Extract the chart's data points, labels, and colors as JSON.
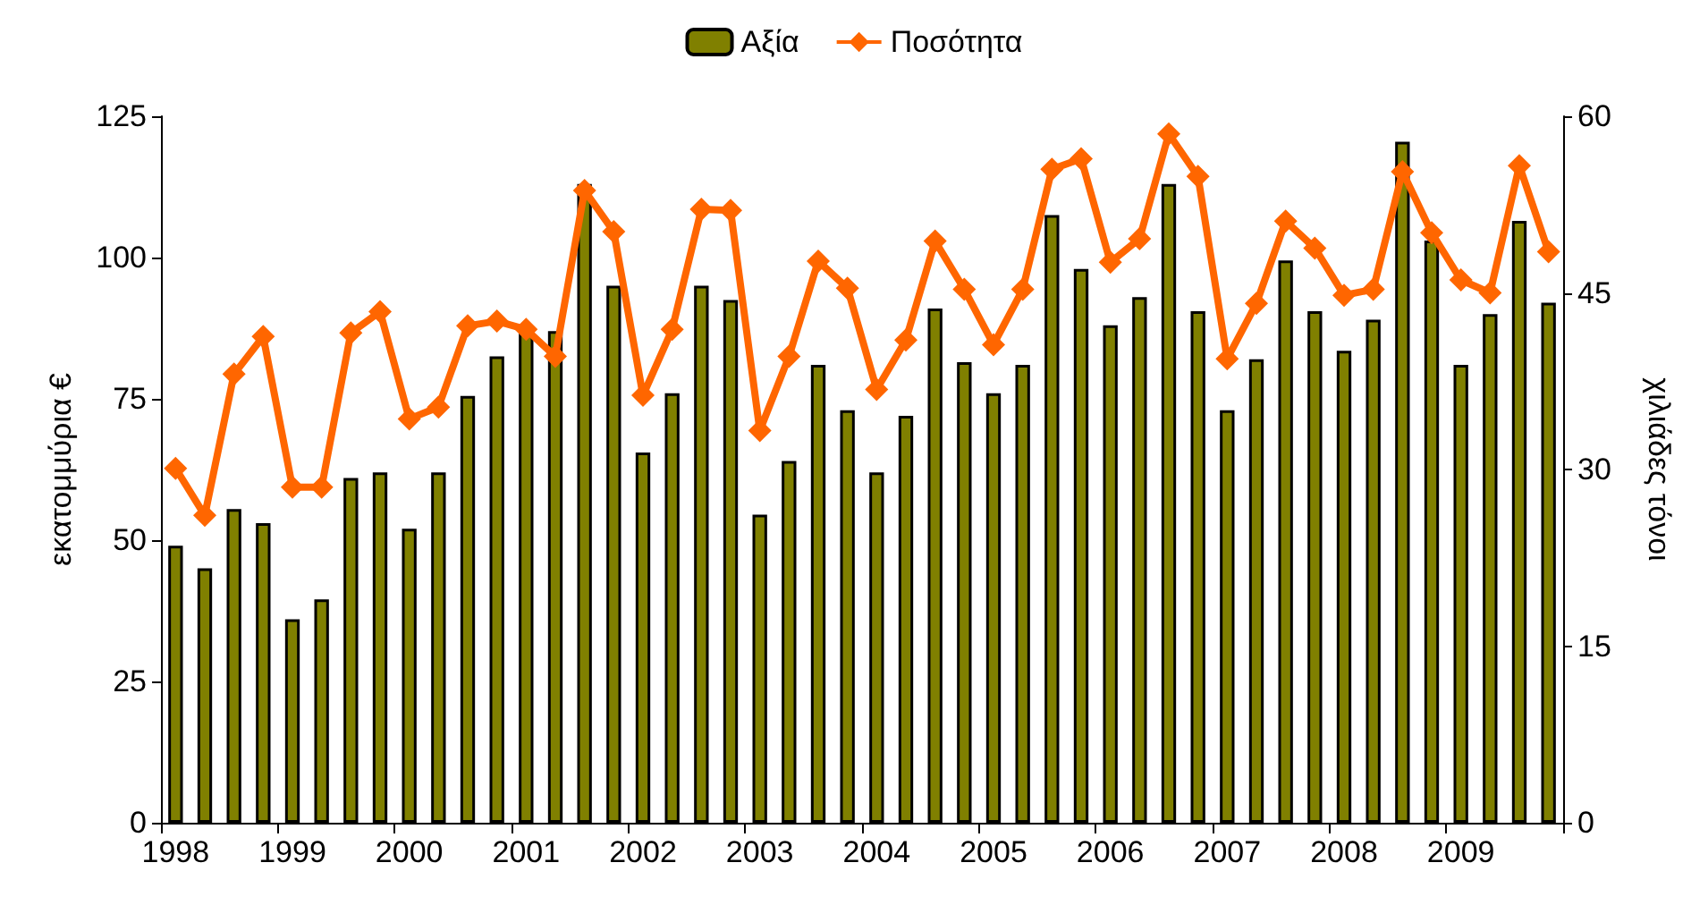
{
  "chart_data": {
    "type": "bar",
    "categories": [
      "1998",
      null,
      null,
      null,
      "1999",
      null,
      null,
      null,
      "2000",
      null,
      null,
      null,
      "2001",
      null,
      null,
      null,
      "2002",
      null,
      null,
      null,
      "2003",
      null,
      null,
      null,
      "2004",
      null,
      null,
      null,
      "2005",
      null,
      null,
      null,
      "2006",
      null,
      null,
      null,
      "2007",
      null,
      null,
      null,
      "2008",
      null,
      null,
      null,
      "2009",
      null,
      null,
      null
    ],
    "series": [
      {
        "name": "Αξία",
        "color": "#808000",
        "values": [
          49,
          45,
          55.5,
          53,
          36,
          39.5,
          61,
          62,
          52,
          62,
          75.5,
          82.5,
          87,
          87,
          113,
          95,
          65.5,
          76,
          95,
          92.5,
          54.5,
          64,
          81,
          73,
          62,
          72,
          91,
          81.5,
          76,
          81,
          107.5,
          98,
          88,
          93,
          113,
          90.5,
          73,
          82,
          99.5,
          90.5,
          83.5,
          89,
          120.5,
          103,
          81,
          90,
          106.5,
          92
        ]
      },
      {
        "name": "Ποσότητα",
        "type": "line",
        "axis": "y2",
        "color": "#ff6600",
        "marker": "diamond",
        "values": [
          30.1,
          26.1,
          38.1,
          41.3,
          28.5,
          28.5,
          41.6,
          43.4,
          34.3,
          35.3,
          42.2,
          42.6,
          41.9,
          39.6,
          53.7,
          50.2,
          36.3,
          41.9,
          52.1,
          52,
          33.3,
          39.6,
          47.7,
          45.4,
          36.8,
          41,
          49.4,
          45.3,
          40.6,
          45.3,
          55.5,
          56.4,
          47.6,
          49.6,
          58.5,
          54.9,
          39.4,
          44.1,
          51.1,
          48.8,
          44.8,
          45.3,
          55.3,
          50.1,
          46.1,
          45,
          55.8,
          48.5
        ]
      }
    ],
    "ylabel": "εκατομμύρια €",
    "y2label": "χιλιάδες τόνοι",
    "ylim": [
      0,
      125
    ],
    "yticks": [
      0,
      25,
      50,
      75,
      100,
      125
    ],
    "y2lim": [
      0,
      60
    ],
    "y2ticks": [
      0,
      15,
      30,
      45,
      60
    ],
    "legend": "top",
    "grid": false
  }
}
